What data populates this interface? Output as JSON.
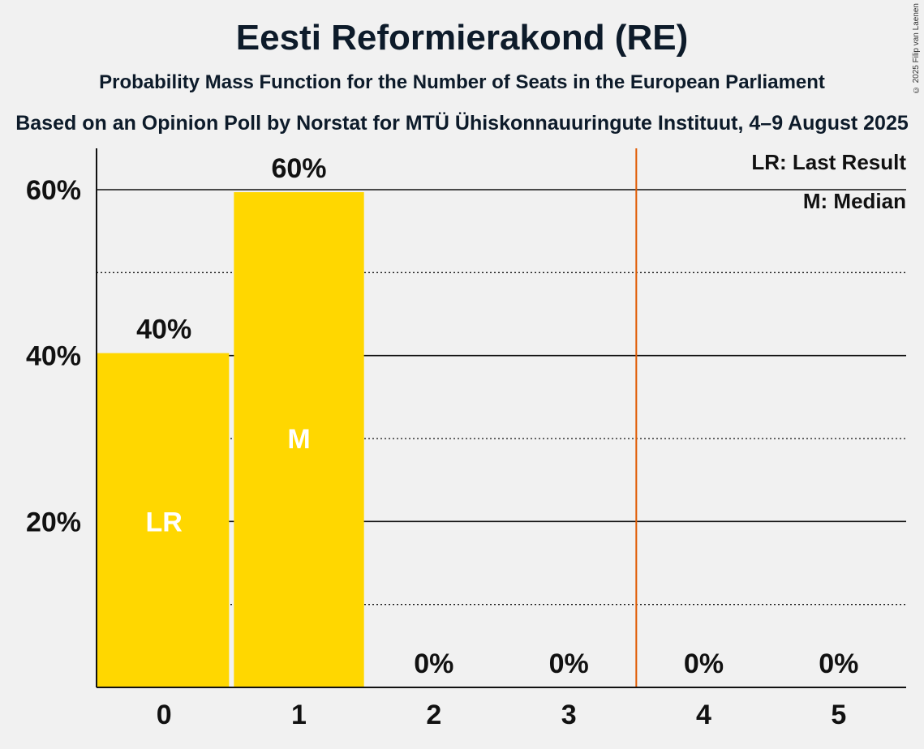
{
  "title": "Eesti Reformierakond (RE)",
  "subtitle": "Probability Mass Function for the Number of Seats in the European Parliament",
  "subtitle2": "Based on an Opinion Poll by Norstat for MTÜ Ühiskonnauuringute Instituut, 4–9 August 2025",
  "copyright": "© 2025 Filip van Laenen",
  "legend": {
    "last_result": "LR: Last Result",
    "median": "M: Median"
  },
  "colors": {
    "bar": "#FFD700",
    "last_result_line": "#E05A00",
    "axis": "#111111"
  },
  "chart_data": {
    "type": "bar",
    "categories": [
      "0",
      "1",
      "2",
      "3",
      "4",
      "5"
    ],
    "values": [
      40.3,
      59.7,
      0,
      0,
      0,
      0
    ],
    "value_labels": [
      "40%",
      "60%",
      "0%",
      "0%",
      "0%",
      "0%"
    ],
    "bar_annotations": [
      "LR",
      "M",
      "",
      "",
      "",
      ""
    ],
    "ylim": [
      0,
      65
    ],
    "yticks": [
      20,
      40,
      60
    ],
    "ytick_labels": [
      "20%",
      "40%",
      "60%"
    ],
    "minor_gridlines": [
      10,
      30,
      50
    ],
    "last_result_marker_between": [
      3,
      4
    ],
    "grid": true,
    "legend_position": "top-right"
  }
}
